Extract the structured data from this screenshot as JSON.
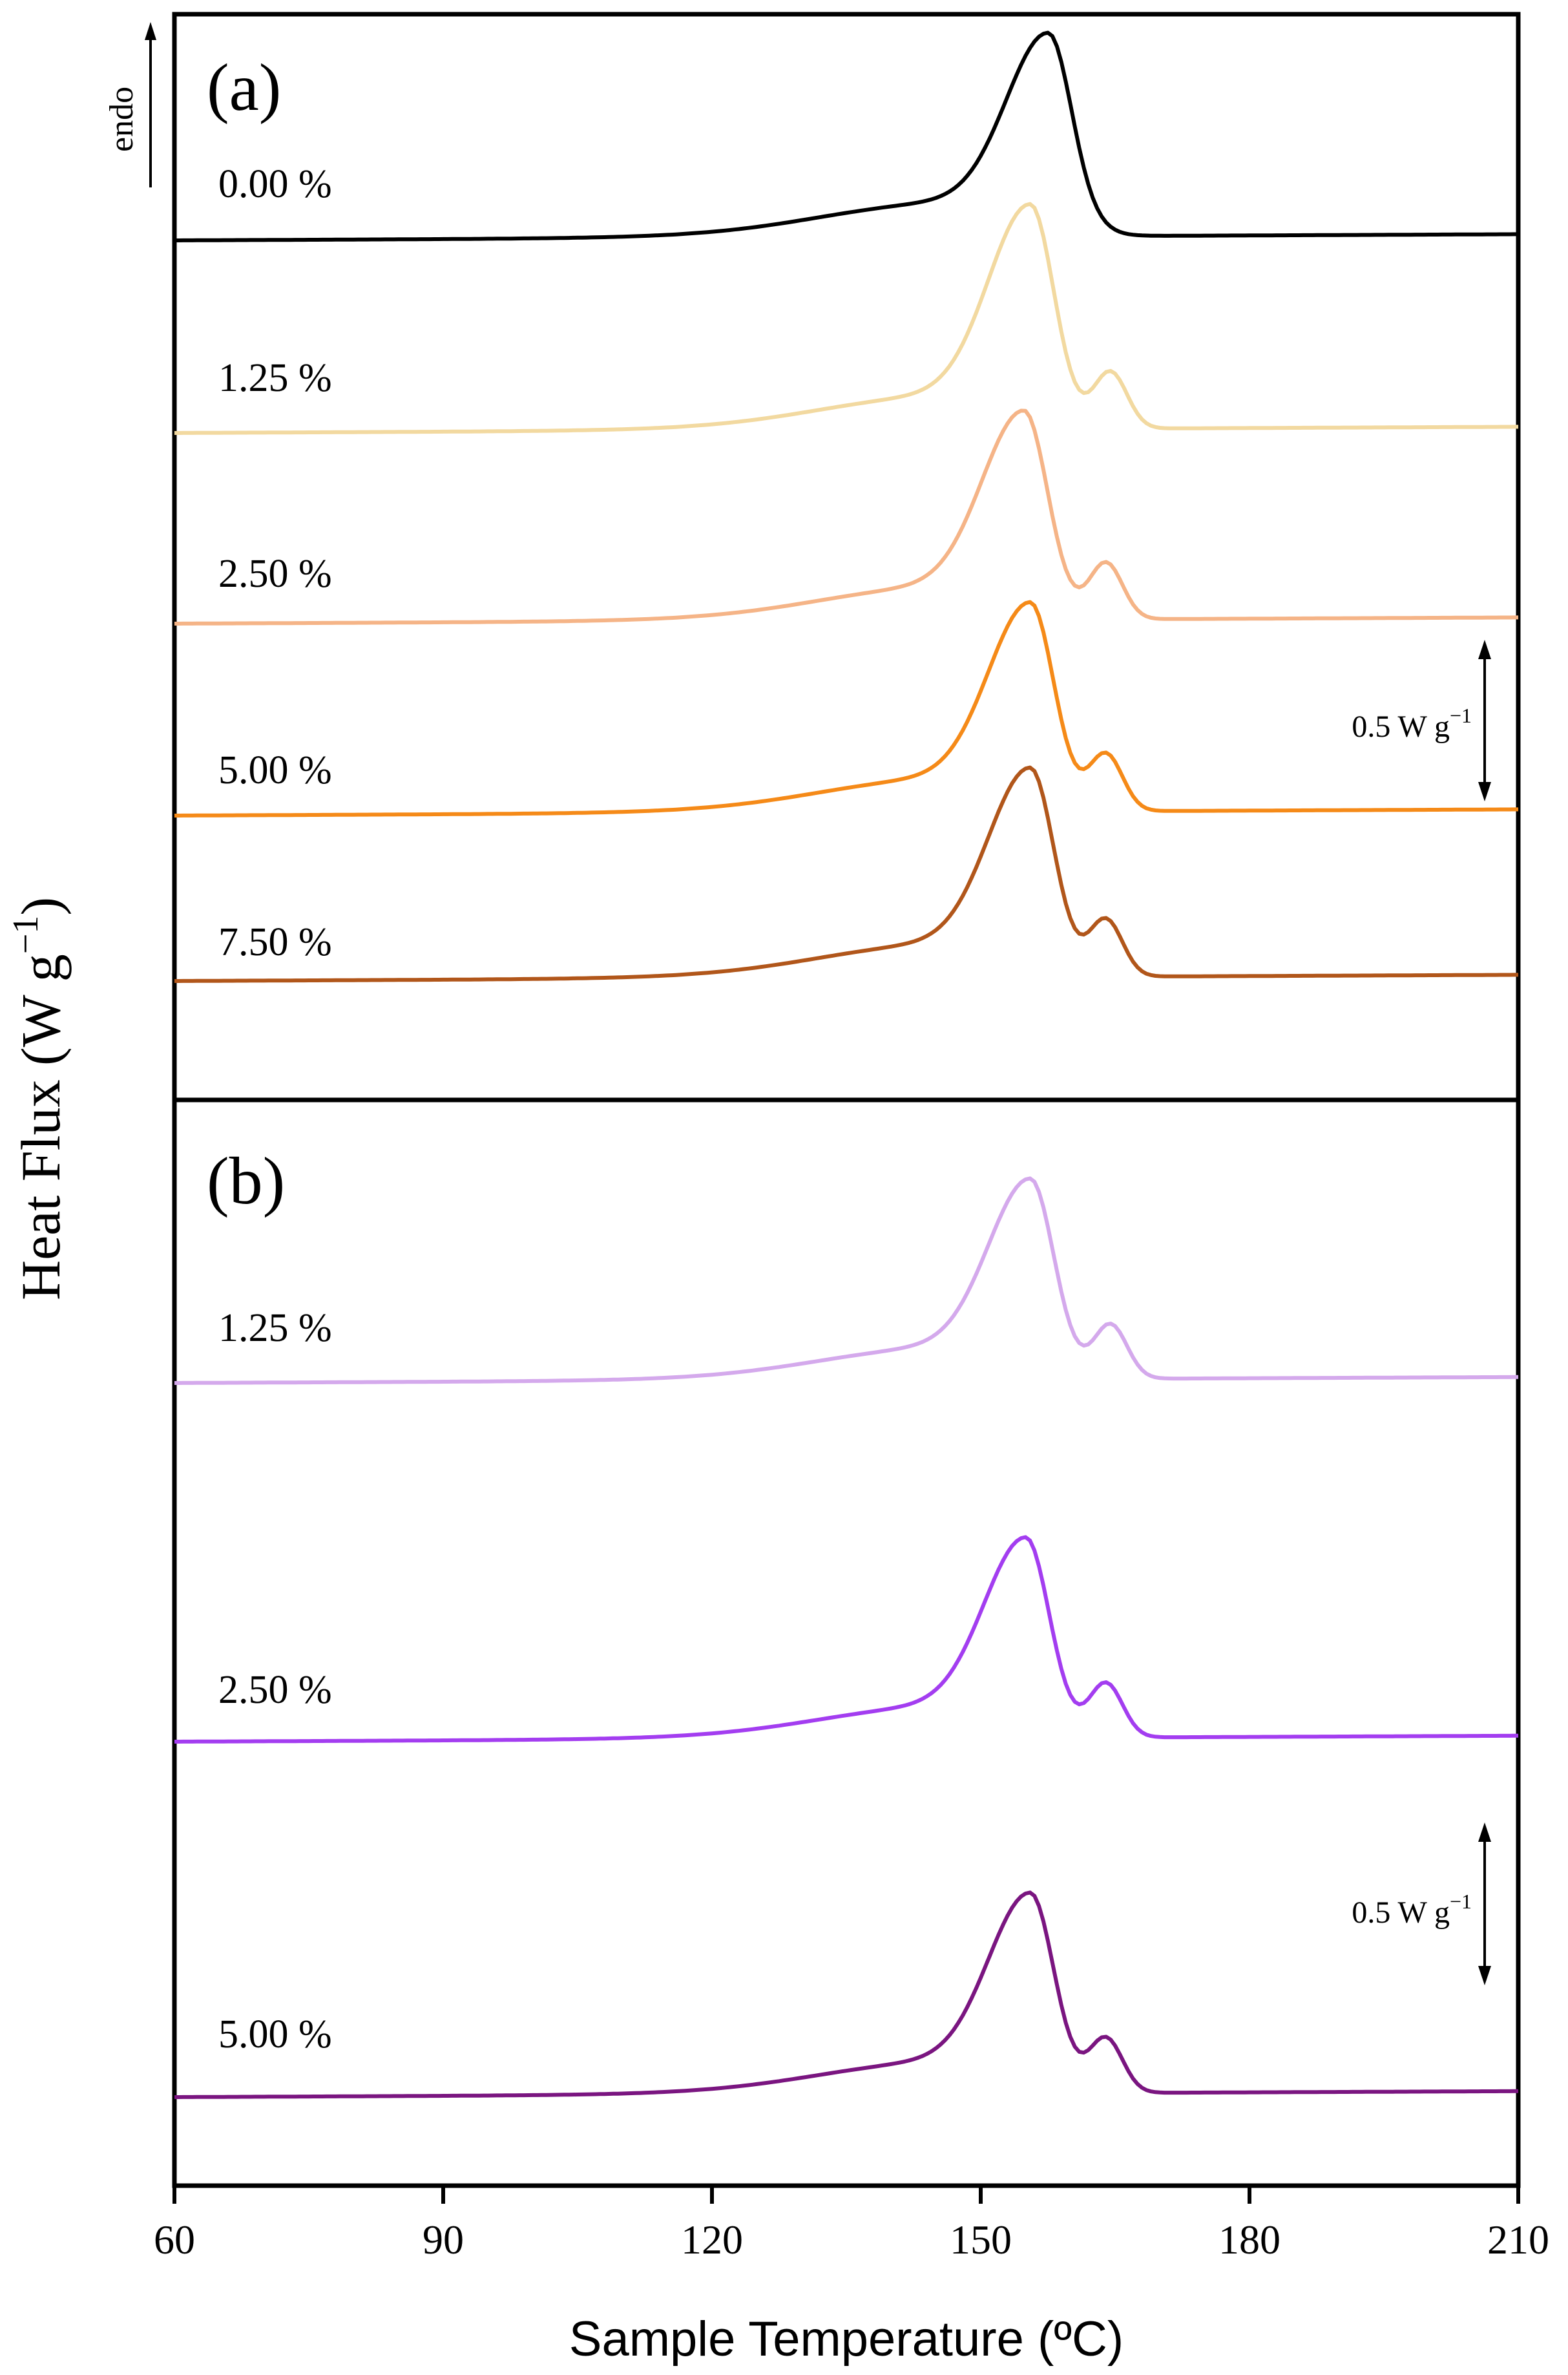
{
  "chart_data": {
    "type": "line",
    "ylabel_main": "Heat Flux (W g",
    "ylabel_sup": "−1",
    "ylabel_close": ")",
    "xlabel": "Sample Temperature (ºC)",
    "xlim": [
      60,
      210
    ],
    "xticks": [
      60,
      90,
      120,
      150,
      180,
      210
    ],
    "xtick_labels": [
      "60",
      "90",
      "120",
      "150",
      "180",
      "210"
    ],
    "endo_label": "endo",
    "panels": [
      {
        "label": "(a)",
        "scale_bar": {
          "text_main": "0.5 W g",
          "text_sup": "−1",
          "value": 0.5
        },
        "series": [
          {
            "name": "0.00 %",
            "color": "#000000",
            "base": 0.0,
            "offset": 0.0,
            "peak_t": 157.5,
            "peak_h": 0.53,
            "tail_t": 161
          },
          {
            "name": "1.25 %",
            "color": "#f2d9a0",
            "base": -0.6,
            "offset": -0.6,
            "peak_t": 155.5,
            "peak_h": 0.6,
            "shoulder_t": 164.5
          },
          {
            "name": "2.50 %",
            "color": "#f5b487",
            "base": -1.3,
            "offset": -1.3,
            "peak_t": 154.8,
            "peak_h": 0.55,
            "shoulder_t": 164.0
          },
          {
            "name": "5.00 %",
            "color": "#f58a18",
            "base": -2.0,
            "offset": -2.0,
            "peak_t": 155.5,
            "peak_h": 0.55,
            "shoulder_t": 164.0
          },
          {
            "name": "7.50 %",
            "color": "#b1561a",
            "base": -2.6,
            "offset": -2.6,
            "peak_t": 155.5,
            "peak_h": 0.55,
            "shoulder_t": 164.0
          }
        ]
      },
      {
        "label": "(b)",
        "scale_bar": {
          "text_main": "0.5 W g",
          "text_sup": "−1",
          "value": 0.5
        },
        "series": [
          {
            "name": "1.25 %",
            "color": "#d4a9ec",
            "base": 0.0,
            "offset": 0.0,
            "peak_t": 155.5,
            "peak_h": 0.55,
            "shoulder_t": 164.5
          },
          {
            "name": "2.50 %",
            "color": "#a33df0",
            "base": -1.3,
            "offset": -1.3,
            "peak_t": 155.0,
            "peak_h": 0.55,
            "shoulder_t": 164.0
          },
          {
            "name": "5.00 %",
            "color": "#7a1580",
            "base": -2.5,
            "offset": -2.5,
            "peak_t": 155.5,
            "peak_h": 0.55,
            "shoulder_t": 164.0
          }
        ]
      }
    ]
  }
}
